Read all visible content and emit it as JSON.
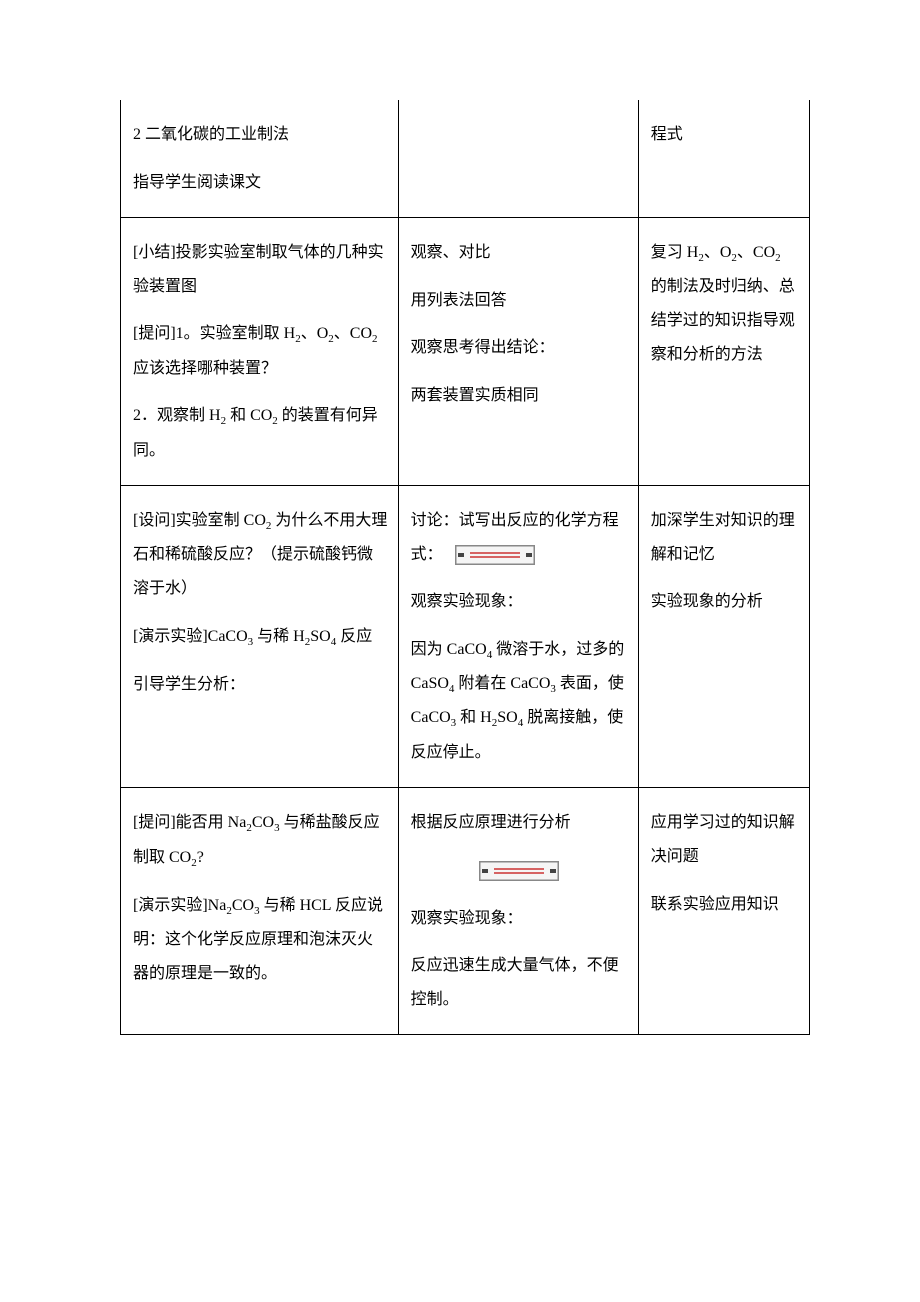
{
  "table": {
    "border_color": "#000000",
    "background": "#ffffff",
    "font_family": "SimSun",
    "font_size_pt": 12,
    "line_height": 2.1,
    "column_widths_pct": [
      41,
      35,
      24
    ],
    "rows": [
      {
        "c1": {
          "paras": [
            "2 二氧化碳的工业制法",
            "指导学生阅读课文"
          ]
        },
        "c2": {
          "paras": [
            ""
          ]
        },
        "c3": {
          "paras": [
            "程式"
          ]
        }
      },
      {
        "c1": {
          "paras": [
            "[小结]投影实验室制取气体的几种实验装置图",
            "[提问]1。实验室制取 H₂、O₂、CO₂ 应该选择哪种装置？",
            "2．观察制 H₂ 和 CO₂ 的装置有何异同。"
          ]
        },
        "c2": {
          "paras": [
            "观察、对比",
            "用列表法回答",
            "观察思考得出结论：",
            "两套装置实质相同"
          ]
        },
        "c3": {
          "paras": [
            "复习 H₂、O₂、CO₂ 的制法及时归纳、总结学过的知识指导观察和分析的方法"
          ]
        }
      },
      {
        "c1": {
          "paras": [
            "[设问]实验室制 CO₂ 为什么不用大理石和稀硫酸反应？（提示硫酸钙微溶于水）",
            "[演示实验]CaCO₃ 与稀 H₂SO₄ 反应",
            "引导学生分析："
          ]
        },
        "c2": {
          "paras": [
            {
              "type": "text_with_img",
              "before": "讨论：试写出反应的化学方程式：",
              "img": {
                "w": 78,
                "h": 18
              },
              "after": ""
            },
            "观察实验现象：",
            "因为 CaCO₄ 微溶于水，过多的 CaSO₄ 附着在 CaCO₃ 表面，使 CaCO₃ 和 H₂SO₄ 脱离接触，使反应停止。"
          ]
        },
        "c3": {
          "paras": [
            "加深学生对知识的理解和记忆",
            "实验象现的分析"
          ],
          "paras_fixed": [
            "加深学生对知识的理解和记忆",
            "实验现象的分析"
          ]
        }
      },
      {
        "c1": {
          "paras": [
            "[提问]能否用 Na₂CO₃ 与稀盐酸反应制取 CO₂?",
            "[演示实验]Na₂CO₃ 与稀 HCL 反应说明：这个化学反应原理和泡沫灭火器的原理是一致的。"
          ]
        },
        "c2": {
          "paras": [
            "根据反应原理进行分析",
            {
              "type": "img_only",
              "img": {
                "w": 78,
                "h": 18
              }
            },
            "观察实验现象：",
            "反应迅速生成大量气体，不便控制。"
          ]
        },
        "c3": {
          "paras": [
            "应用学习过的知识解决问题",
            "联系实验应用知识"
          ]
        }
      }
    ]
  },
  "img_stub_colors": {
    "border": "#888888",
    "fill": "#f5f5f5",
    "accent": "#cc3333"
  }
}
